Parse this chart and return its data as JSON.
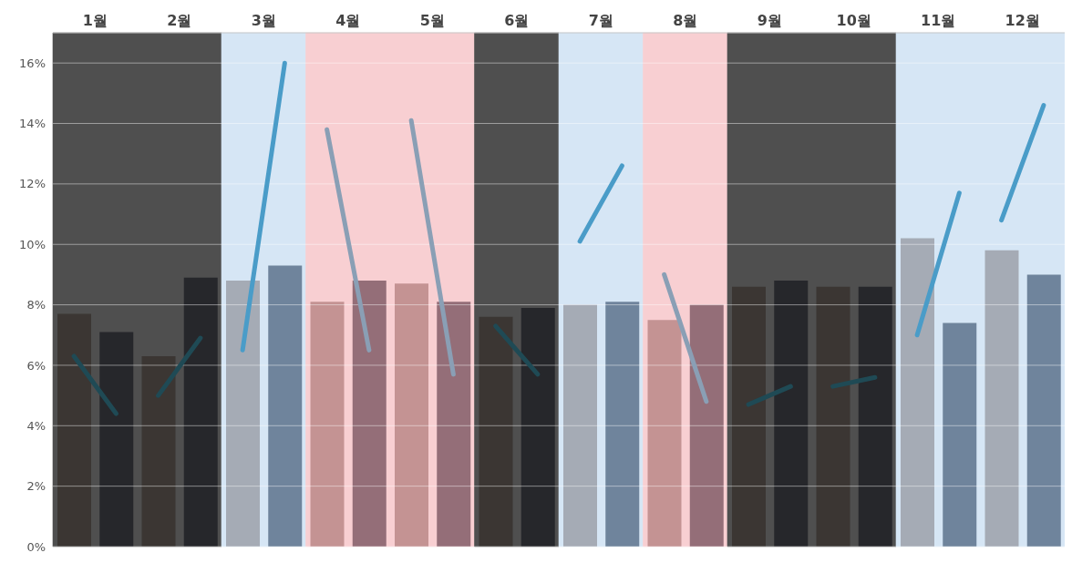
{
  "chart_data": {
    "type": "bar",
    "xlim": [
      0.5,
      12.5
    ],
    "xticks": [
      {
        "value": 1,
        "label": "1월"
      },
      {
        "value": 2,
        "label": "2월"
      },
      {
        "value": 3,
        "label": "3월"
      },
      {
        "value": 4,
        "label": "4월"
      },
      {
        "value": 5,
        "label": "5월"
      },
      {
        "value": 6,
        "label": "6월"
      },
      {
        "value": 7,
        "label": "7월"
      },
      {
        "value": 8,
        "label": "8월"
      },
      {
        "value": 9,
        "label": "9월"
      },
      {
        "value": 10,
        "label": "10월"
      },
      {
        "value": 11,
        "label": "11월"
      },
      {
        "value": 12,
        "label": "12월"
      }
    ],
    "ylim": [
      0,
      17
    ],
    "yticks": [
      {
        "value": 0,
        "label": "0%"
      },
      {
        "value": 2,
        "label": "2%"
      },
      {
        "value": 4,
        "label": "4%"
      },
      {
        "value": 6,
        "label": "6%"
      },
      {
        "value": 8,
        "label": "8%"
      },
      {
        "value": 10,
        "label": "10%"
      },
      {
        "value": 12,
        "label": "12%"
      },
      {
        "value": 14,
        "label": "14%"
      },
      {
        "value": 16,
        "label": "16%"
      }
    ],
    "grid": "y",
    "legend": false,
    "marker": "none",
    "line_style": "solid",
    "bands": [
      {
        "axis": "x",
        "from": 0.5,
        "to": 2.5,
        "color": "#4f4f4f"
      },
      {
        "axis": "x",
        "from": 2.5,
        "to": 3.5,
        "color": "#d6e6f5"
      },
      {
        "axis": "x",
        "from": 3.5,
        "to": 5.5,
        "color": "#f8cfd2"
      },
      {
        "axis": "x",
        "from": 5.5,
        "to": 6.5,
        "color": "#4f4f4f"
      },
      {
        "axis": "x",
        "from": 6.5,
        "to": 7.5,
        "color": "#d6e6f5"
      },
      {
        "axis": "x",
        "from": 7.5,
        "to": 8.5,
        "color": "#f8cfd2"
      },
      {
        "axis": "x",
        "from": 8.5,
        "to": 10.5,
        "color": "#4f4f4f"
      },
      {
        "axis": "x",
        "from": 10.5,
        "to": 12.5,
        "color": "#d6e6f5"
      }
    ],
    "series": [
      {
        "x": [
          0.75,
          1.75,
          2.75,
          3.75,
          4.75,
          5.75,
          6.75,
          7.75,
          8.75,
          9.75,
          10.75,
          11.75
        ],
        "values": [
          7.7,
          6.3,
          8.8,
          8.1,
          8.7,
          7.6,
          8.0,
          7.5,
          8.6,
          8.6,
          10.2,
          9.8
        ],
        "colors": [
          "#3b3633",
          "#3b3633",
          "#a5abb5",
          "#c49393",
          "#c49393",
          "#3b3633",
          "#a5abb5",
          "#c49393",
          "#3b3633",
          "#3b3633",
          "#a5abb5",
          "#a5abb5"
        ]
      },
      {
        "x": [
          1.25,
          2.25,
          3.25,
          4.25,
          5.25,
          6.25,
          7.25,
          8.25,
          9.25,
          10.25,
          11.25,
          12.25
        ],
        "values": [
          7.1,
          8.9,
          9.3,
          8.8,
          8.1,
          7.9,
          8.1,
          8.0,
          8.8,
          8.6,
          7.4,
          9.0
        ],
        "colors": [
          "#26272b",
          "#26272b",
          "#6f849c",
          "#946e78",
          "#946e78",
          "#26272b",
          "#6f849c",
          "#946e78",
          "#26272b",
          "#26272b",
          "#6f849c",
          "#6f849c"
        ]
      },
      {
        "type": "line",
        "x": [
          0.75,
          1.25
        ],
        "values": [
          6.3,
          4.4
        ],
        "color": "#1f4a55"
      },
      {
        "type": "line",
        "x": [
          1.75,
          2.25
        ],
        "values": [
          5.0,
          6.9
        ],
        "color": "#1f4a55"
      },
      {
        "type": "line",
        "x": [
          2.75,
          3.25
        ],
        "values": [
          6.5,
          16.0
        ],
        "color": "#4a9cc8"
      },
      {
        "type": "line",
        "x": [
          3.75,
          4.25
        ],
        "values": [
          13.8,
          6.5
        ],
        "color": "#8a9fb5"
      },
      {
        "type": "line",
        "x": [
          4.75,
          5.25
        ],
        "values": [
          14.1,
          5.7
        ],
        "color": "#8a9fb5"
      },
      {
        "type": "line",
        "x": [
          5.75,
          6.25
        ],
        "values": [
          7.3,
          5.7
        ],
        "color": "#1f4a55"
      },
      {
        "type": "line",
        "x": [
          6.75,
          7.25
        ],
        "values": [
          10.1,
          12.6
        ],
        "color": "#4a9cc8"
      },
      {
        "type": "line",
        "x": [
          7.75,
          8.25
        ],
        "values": [
          9.0,
          4.8
        ],
        "color": "#8a9fb5"
      },
      {
        "type": "line",
        "x": [
          8.75,
          9.25
        ],
        "values": [
          4.7,
          5.3
        ],
        "color": "#1f4a55"
      },
      {
        "type": "line",
        "x": [
          9.75,
          10.25
        ],
        "values": [
          5.3,
          5.6
        ],
        "color": "#1f4a55"
      },
      {
        "type": "line",
        "x": [
          10.75,
          11.25
        ],
        "values": [
          7.0,
          11.7
        ],
        "color": "#4a9cc8"
      },
      {
        "type": "line",
        "x": [
          11.75,
          12.25
        ],
        "values": [
          10.8,
          14.6
        ],
        "color": "#4a9cc8"
      }
    ]
  }
}
